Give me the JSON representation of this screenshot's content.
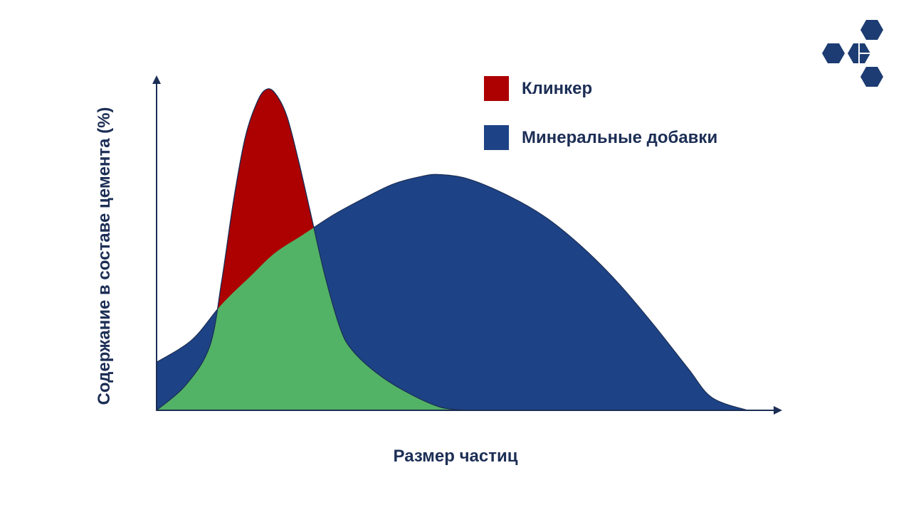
{
  "chart_data": {
    "type": "area",
    "title": "",
    "xlabel": "Размер частиц",
    "ylabel": "Содержание в составе цемента (%)",
    "x_range": [
      0,
      100
    ],
    "y_range": [
      0,
      100
    ],
    "grid": false,
    "legend_placement": "top-right",
    "series": [
      {
        "name": "Клинкер",
        "color": "#ad0000",
        "points": [
          [
            0,
            0
          ],
          [
            5,
            8
          ],
          [
            9,
            20
          ],
          [
            11,
            40
          ],
          [
            13,
            65
          ],
          [
            15,
            85
          ],
          [
            17,
            96
          ],
          [
            18.5,
            100
          ],
          [
            20,
            99
          ],
          [
            22,
            92
          ],
          [
            24,
            78
          ],
          [
            26,
            62
          ],
          [
            28.5,
            42
          ],
          [
            31,
            26
          ],
          [
            33,
            19
          ],
          [
            37,
            12
          ],
          [
            42,
            6
          ],
          [
            48,
            1
          ],
          [
            53,
            0
          ]
        ]
      },
      {
        "name": "Минеральные добавки",
        "color": "#1d4386",
        "points": [
          [
            0,
            15
          ],
          [
            6,
            22
          ],
          [
            11,
            33
          ],
          [
            16,
            42
          ],
          [
            20,
            49
          ],
          [
            25,
            55
          ],
          [
            30,
            61
          ],
          [
            35,
            66
          ],
          [
            40,
            70.5
          ],
          [
            45,
            73
          ],
          [
            48,
            73.5
          ],
          [
            53,
            72
          ],
          [
            60,
            66.5
          ],
          [
            66,
            60
          ],
          [
            72,
            51
          ],
          [
            78,
            40
          ],
          [
            84,
            27
          ],
          [
            90,
            13
          ],
          [
            94,
            4
          ],
          [
            100,
            0
          ]
        ]
      }
    ],
    "overlap_color": "#52b266"
  },
  "legend": {
    "items": [
      {
        "label": "Клинкер",
        "color": "#ad0000"
      },
      {
        "label": "Минеральные добавки",
        "color": "#1d4386"
      }
    ]
  },
  "axes": {
    "x_label": "Размер частиц",
    "y_label": "Содержание в составе цемента (%)",
    "color": "#1c2e55"
  },
  "logo": {
    "icon": "hexagon-cluster-logo-icon",
    "color": "#1d3c73"
  }
}
